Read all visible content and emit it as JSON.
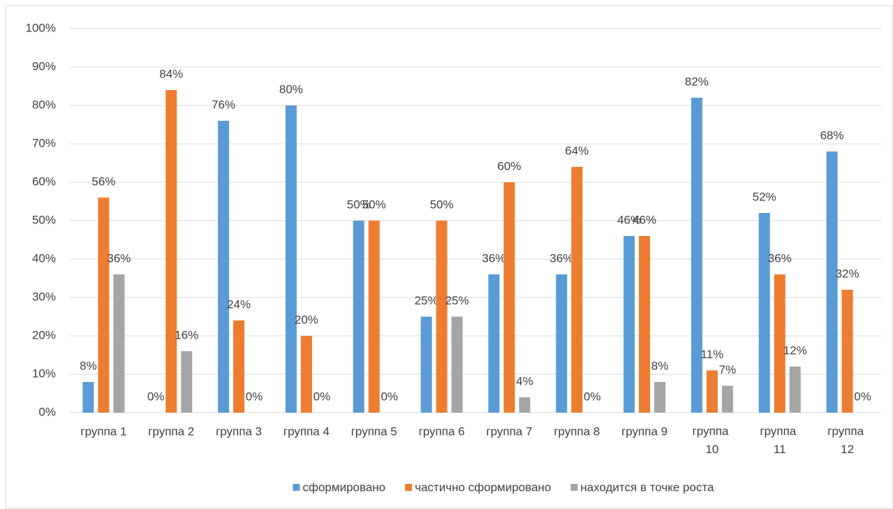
{
  "chart_data": {
    "type": "bar",
    "categories": [
      "группа 1",
      "группа 2",
      "группа 3",
      "группа 4",
      "группа 5",
      "группа 6",
      "группа 7",
      "группа 8",
      "группа 9",
      "группа 10",
      "группа 11",
      "группа 12"
    ],
    "series": [
      {
        "name": "сформировано",
        "color": "#5b9bd5",
        "values": [
          8,
          0,
          76,
          80,
          50,
          25,
          36,
          36,
          46,
          82,
          52,
          68
        ],
        "value_labels": [
          "8%",
          "0%",
          "76%",
          "80%",
          "50%",
          "25%",
          "36%",
          "36%",
          "46%",
          "82%",
          "52%",
          "68%"
        ]
      },
      {
        "name": "частично сформировано",
        "color": "#ed7d31",
        "values": [
          56,
          84,
          24,
          20,
          50,
          50,
          60,
          64,
          46,
          11,
          36,
          32
        ],
        "value_labels": [
          "56%",
          "84%",
          "24%",
          "20%",
          "50%",
          "50%",
          "60%",
          "64%",
          "46%",
          "11%",
          "36%",
          "32%"
        ]
      },
      {
        "name": "находится в точке роста",
        "color": "#a5a5a5",
        "values": [
          36,
          16,
          0,
          0,
          0,
          25,
          4,
          0,
          8,
          7,
          12,
          0
        ],
        "value_labels": [
          "36%",
          "16%",
          "0%",
          "0%",
          "0%",
          "25%",
          "4%",
          "0%",
          "8%",
          "7%",
          "12%",
          "0%"
        ]
      }
    ],
    "ylim": [
      0,
      100
    ],
    "yticks": [
      {
        "value": 0,
        "label": "0%"
      },
      {
        "value": 10,
        "label": "10%"
      },
      {
        "value": 20,
        "label": "20%"
      },
      {
        "value": 30,
        "label": "30%"
      },
      {
        "value": 40,
        "label": "40%"
      },
      {
        "value": 50,
        "label": "50%"
      },
      {
        "value": 60,
        "label": "60%"
      },
      {
        "value": 70,
        "label": "70%"
      },
      {
        "value": 80,
        "label": "80%"
      },
      {
        "value": 90,
        "label": "90%"
      },
      {
        "value": 100,
        "label": "100%"
      }
    ],
    "grid": true,
    "legend": "bottom"
  }
}
